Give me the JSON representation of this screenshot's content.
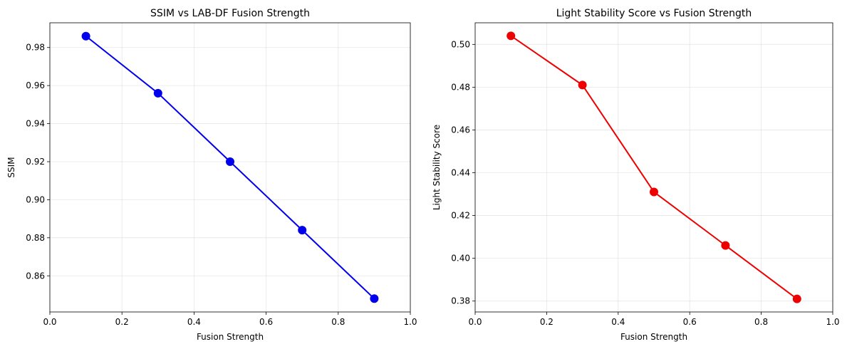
{
  "chart_data": [
    {
      "type": "line",
      "title": "SSIM vs LAB-DF Fusion Strength",
      "xlabel": "Fusion Strength",
      "ylabel": "SSIM",
      "xlim": [
        0.0,
        1.0
      ],
      "ylim": [
        0.841,
        0.993
      ],
      "xticks": [
        0.0,
        0.2,
        0.4,
        0.6,
        0.8,
        1.0
      ],
      "xtick_labels": [
        "0.0",
        "0.2",
        "0.4",
        "0.6",
        "0.8",
        "1.0"
      ],
      "yticks": [
        0.86,
        0.88,
        0.9,
        0.92,
        0.94,
        0.96,
        0.98
      ],
      "ytick_labels": [
        "0.86",
        "0.88",
        "0.90",
        "0.92",
        "0.94",
        "0.96",
        "0.98"
      ],
      "grid": true,
      "color": "#0000ee",
      "x": [
        0.1,
        0.3,
        0.5,
        0.7,
        0.9
      ],
      "y": [
        0.986,
        0.956,
        0.92,
        0.884,
        0.848
      ]
    },
    {
      "type": "line",
      "title": "Light Stability Score vs Fusion Strength",
      "xlabel": "Fusion Strength",
      "ylabel": "Light Stability Score",
      "xlim": [
        0.0,
        1.0
      ],
      "ylim": [
        0.3749,
        0.5101
      ],
      "xticks": [
        0.0,
        0.2,
        0.4,
        0.6,
        0.8,
        1.0
      ],
      "xtick_labels": [
        "0.0",
        "0.2",
        "0.4",
        "0.6",
        "0.8",
        "1.0"
      ],
      "yticks": [
        0.38,
        0.4,
        0.42,
        0.44,
        0.46,
        0.48,
        0.5
      ],
      "ytick_labels": [
        "0.38",
        "0.40",
        "0.42",
        "0.44",
        "0.46",
        "0.48",
        "0.50"
      ],
      "grid": true,
      "color": "#ee0000",
      "x": [
        0.1,
        0.3,
        0.5,
        0.7,
        0.9
      ],
      "y": [
        0.504,
        0.481,
        0.431,
        0.406,
        0.381
      ]
    }
  ]
}
